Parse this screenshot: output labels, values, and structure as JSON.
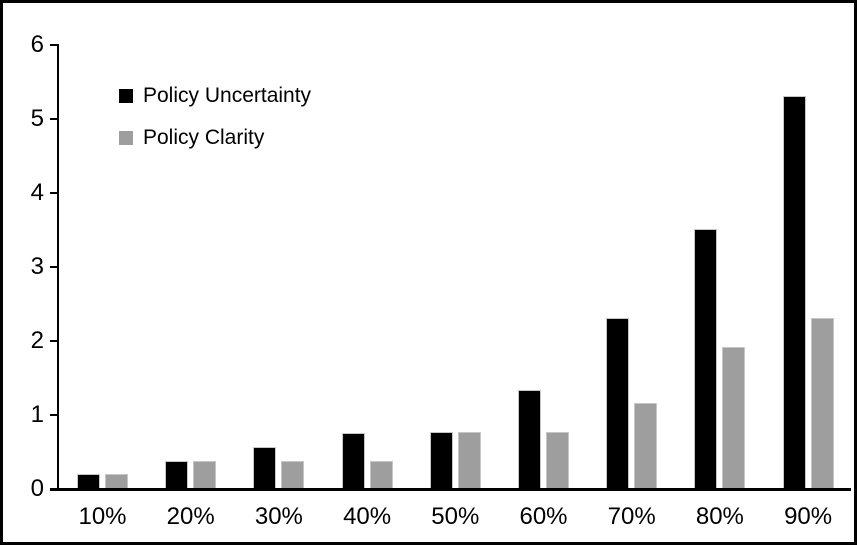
{
  "chart_data": {
    "type": "bar",
    "title": "",
    "xlabel": "",
    "ylabel": "",
    "categories": [
      "10%",
      "20%",
      "30%",
      "40%",
      "50%",
      "60%",
      "70%",
      "80%",
      "90%"
    ],
    "series": [
      {
        "name": "Policy Uncertainty",
        "color": "#000000",
        "values": [
          0.19,
          0.37,
          0.55,
          0.75,
          0.76,
          1.32,
          2.3,
          3.5,
          5.3
        ]
      },
      {
        "name": "Policy Clarity",
        "color": "#9e9e9e",
        "values": [
          0.19,
          0.37,
          0.37,
          0.37,
          0.76,
          0.76,
          1.15,
          1.9,
          2.3
        ]
      }
    ],
    "ylim": [
      0,
      6
    ],
    "yticks": [
      0,
      1,
      2,
      3,
      4,
      5,
      6
    ],
    "grid": false,
    "legend_position": "top-left",
    "frame_color": "#000000",
    "background_color": "#ffffff"
  }
}
